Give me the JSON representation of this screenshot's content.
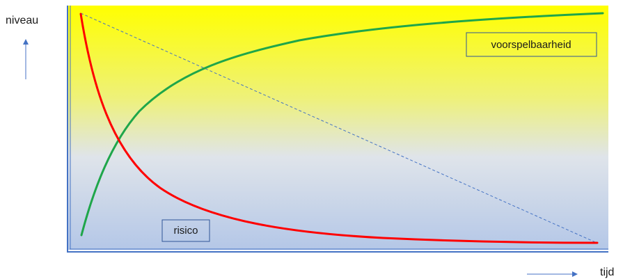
{
  "axes": {
    "y_label": "niveau",
    "x_label": "tijd"
  },
  "labels": {
    "predictability": "voorspelbaarheid",
    "risk": "risico"
  },
  "colors": {
    "background_top": "#ffff00",
    "background_mid": "#dfe4ea",
    "background_bottom": "#b4c7e7",
    "frame": "#4472c4",
    "predictability_line": "#1fa64a",
    "risk_line": "#ff0000",
    "trend_line": "#4472c4",
    "arrow": "#4472c4",
    "label_box_border": "#2f5597"
  }
}
